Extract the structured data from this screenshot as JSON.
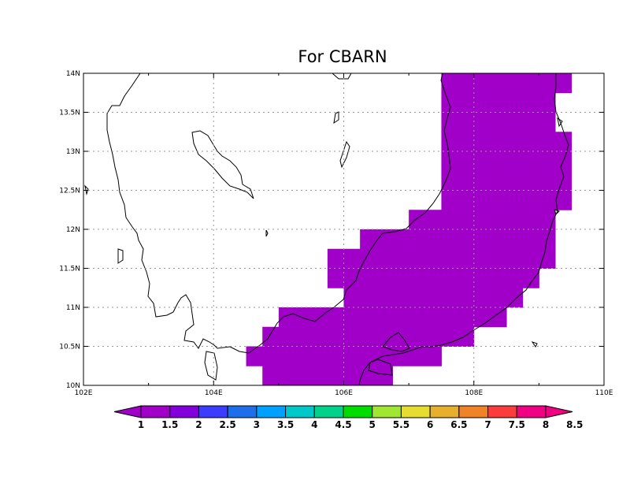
{
  "title": "For CBARN",
  "chart_data": {
    "type": "heatmap",
    "title": "For CBARN",
    "lon_range": [
      102,
      110
    ],
    "lat_range": [
      10,
      14
    ],
    "grid_step_deg": 0.25,
    "x_ticks": [
      "102E",
      "104E",
      "106E",
      "108E",
      "110E"
    ],
    "y_ticks": [
      "10N",
      "10.5N",
      "11N",
      "11.5N",
      "12N",
      "12.5N",
      "13N",
      "13.5N",
      "14N"
    ],
    "grid": true,
    "colorbar": {
      "labels": [
        "1",
        "1.5",
        "2",
        "2.5",
        "3",
        "3.5",
        "4",
        "4.5",
        "5",
        "5.5",
        "6",
        "6.5",
        "7",
        "7.5",
        "8",
        "8.5"
      ],
      "colors": [
        "#a000c8",
        "#8200dc",
        "#3c3cff",
        "#1e6eeb",
        "#00a0ff",
        "#00c8c8",
        "#00d28c",
        "#00dc00",
        "#a0e632",
        "#e6dc32",
        "#e6af2d",
        "#f08228",
        "#fa3c3c",
        "#f00082"
      ],
      "under_color": "#a000c8",
      "over_color": "#f00082"
    },
    "cells": [
      {
        "lat": [
          13.75,
          14
        ],
        "lon": [
          107.5,
          109.5
        ],
        "value": 1
      },
      {
        "lat": [
          13.25,
          13.75
        ],
        "lon": [
          107.5,
          109.25
        ],
        "value": 1
      },
      {
        "lat": [
          12.25,
          13.25
        ],
        "lon": [
          107.5,
          109.5
        ],
        "value": 1
      },
      {
        "lat": [
          12.0,
          12.25
        ],
        "lon": [
          107.0,
          109.25
        ],
        "value": 1
      },
      {
        "lat": [
          11.75,
          12.0
        ],
        "lon": [
          106.25,
          109.25
        ],
        "value": 1
      },
      {
        "lat": [
          11.5,
          11.75
        ],
        "lon": [
          105.75,
          109.25
        ],
        "value": 1
      },
      {
        "lat": [
          11.25,
          11.5
        ],
        "lon": [
          105.75,
          109.0
        ],
        "value": 1
      },
      {
        "lat": [
          11.0,
          11.25
        ],
        "lon": [
          106.0,
          108.75
        ],
        "value": 1
      },
      {
        "lat": [
          10.75,
          11.0
        ],
        "lon": [
          105.0,
          108.5
        ],
        "value": 1
      },
      {
        "lat": [
          10.5,
          10.75
        ],
        "lon": [
          104.75,
          108.0
        ],
        "value": 1
      },
      {
        "lat": [
          10.25,
          10.5
        ],
        "lon": [
          104.5,
          107.5
        ],
        "value": 1
      },
      {
        "lat": [
          10.0,
          10.25
        ],
        "lon": [
          104.75,
          106.75
        ],
        "value": 1
      }
    ]
  }
}
